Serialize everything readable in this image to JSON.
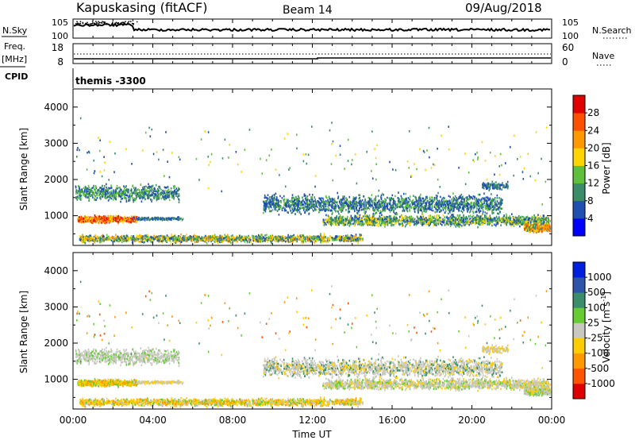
{
  "header": {
    "station": "Kapuskasing (fitACF)",
    "beam": "Beam 14",
    "date": "09/Aug/2018"
  },
  "side_labels": {
    "nsky": "N.Sky",
    "nsearch": "N.Search",
    "freq_line1": "Freq.",
    "freq_line2": "[MHz]",
    "nave": "Nave",
    "cpid": "CPID",
    "cpid_value": "themis -3300"
  },
  "chart_data": [
    {
      "type": "line",
      "name_panel": "noise",
      "left_ticks": [
        "10^5",
        "10^0"
      ],
      "right_ticks": [
        "10^5",
        "10^0"
      ],
      "x_range": [
        "00:00",
        "24:00"
      ]
    },
    {
      "type": "line",
      "name_panel": "frequency",
      "left_ticks": [
        "18",
        "8"
      ],
      "right_ticks": [
        "60",
        "0"
      ],
      "x_range": [
        "00:00",
        "24:00"
      ]
    },
    {
      "type": "heatmap",
      "name_panel": "power",
      "ylabel": "Slant Range [km]",
      "yticks": [
        1000,
        2000,
        3000,
        4000
      ],
      "ylim": [
        180,
        4500
      ],
      "colorbar_label": "Power [dB]",
      "colorbar_ticks": [
        4,
        8,
        12,
        16,
        20,
        24,
        28
      ],
      "colorbar_colors": [
        "#0000ff",
        "#1f4fb0",
        "#3b8c6b",
        "#5fc03b",
        "#ffd400",
        "#ff9900",
        "#ff5000",
        "#e00000"
      ]
    },
    {
      "type": "heatmap",
      "name_panel": "velocity",
      "ylabel": "Slant Range [km]",
      "yticks": [
        1000,
        2000,
        3000,
        4000
      ],
      "ylim": [
        180,
        4500
      ],
      "xlabel": "Time UT",
      "xticks": [
        "00:00",
        "04:00",
        "08:00",
        "12:00",
        "16:00",
        "20:00",
        "00:00"
      ],
      "colorbar_label": "Velocity [m s",
      "colorbar_label_sup": "-1",
      "colorbar_label_end": "]",
      "colorbar_ticks": [
        "1000",
        "500",
        "100",
        "25",
        "-25",
        "-100",
        "-500",
        "-1000"
      ],
      "colorbar_colors": [
        "#0020e0",
        "#2f55a8",
        "#3a8f6a",
        "#66cc33",
        "#c8c8c0",
        "#ffcc00",
        "#ff9900",
        "#ff5500",
        "#e00000"
      ]
    }
  ]
}
